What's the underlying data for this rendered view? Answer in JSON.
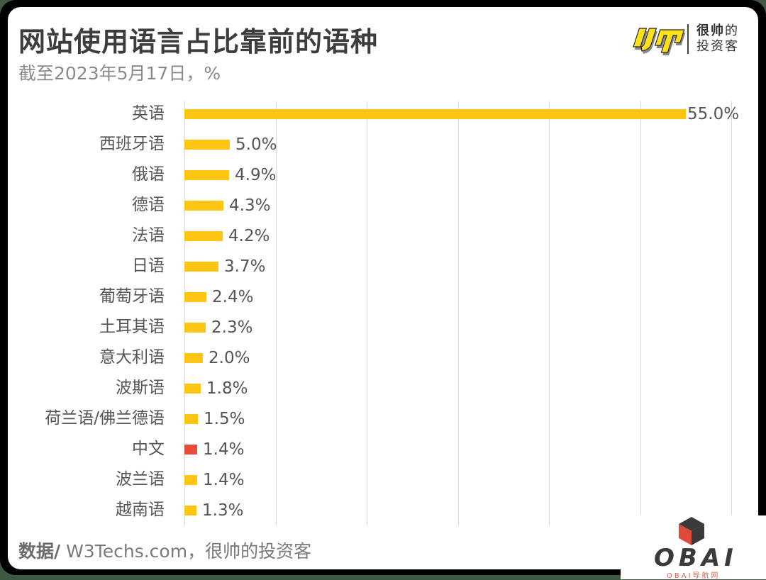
{
  "header": {
    "title": "网站使用语言占比靠前的语种",
    "subtitle": "截至2023年5月17日，%"
  },
  "logo": {
    "mark": "帅",
    "line1_bold": "很帅",
    "line1_rest": "的",
    "line2": "投资客"
  },
  "footer": {
    "source_label": "数据/",
    "source_text": " W3Techs.com，很帅的投资客"
  },
  "watermark": {
    "text": "OBAI",
    "subtext": "OBAI导航网"
  },
  "colors": {
    "bar_default": "#FFC512",
    "bar_highlight": "#E84C3D",
    "gridline": "#D9D9D9",
    "title": "#3D3D3D"
  },
  "chart_data": {
    "type": "bar",
    "orientation": "horizontal",
    "title": "网站使用语言占比靠前的语种",
    "subtitle": "截至2023年5月17日，%",
    "categories": [
      "英语",
      "西班牙语",
      "俄语",
      "德语",
      "法语",
      "日语",
      "葡萄牙语",
      "土耳其语",
      "意大利语",
      "波斯语",
      "荷兰语/佛兰德语",
      "中文",
      "波兰语",
      "越南语"
    ],
    "values": [
      55.0,
      5.0,
      4.9,
      4.3,
      4.2,
      3.7,
      2.4,
      2.3,
      2.0,
      1.8,
      1.5,
      1.4,
      1.4,
      1.3
    ],
    "value_labels": [
      "55.0%",
      "5.0%",
      "4.9%",
      "4.3%",
      "4.2%",
      "3.7%",
      "2.4%",
      "2.3%",
      "2.0%",
      "1.8%",
      "1.5%",
      "1.4%",
      "1.4%",
      "1.3%"
    ],
    "highlight": [
      "中文"
    ],
    "xlabel": "",
    "ylabel": "",
    "xlim": [
      0,
      60
    ],
    "grid_x": [
      0,
      10,
      20,
      30,
      40,
      50,
      60
    ],
    "grid": true,
    "legend": "none",
    "source": "数据/ W3Techs.com，很帅的投资客"
  }
}
